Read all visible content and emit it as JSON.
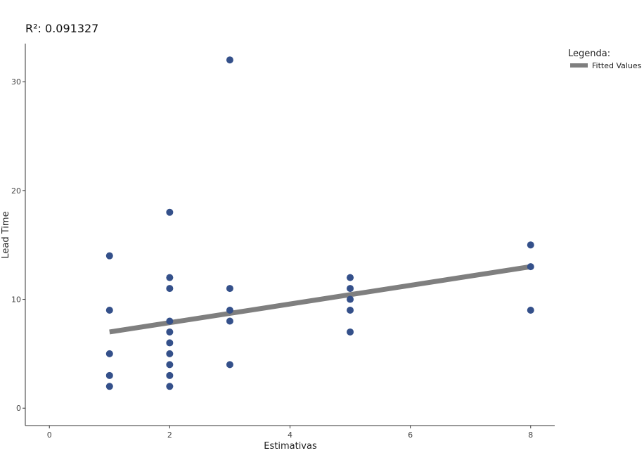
{
  "chart_data": {
    "type": "scatter",
    "title": "R²: 0.091327",
    "xlabel": "Estimativas",
    "ylabel": "Lead Time",
    "xlim": [
      -0.4,
      8.4
    ],
    "ylim": [
      -1.6,
      33.5
    ],
    "x_ticks": [
      0,
      2,
      4,
      6,
      8
    ],
    "y_ticks": [
      0,
      10,
      20,
      30
    ],
    "grid": false,
    "legend": {
      "title": "Legenda:",
      "position": "top-right",
      "entries": [
        {
          "label": "Fitted Values",
          "color": "#7f7f7f"
        }
      ]
    },
    "points": {
      "color": "#34508a",
      "x": [
        1,
        1,
        1,
        1,
        1,
        2,
        2,
        2,
        2,
        2,
        2,
        2,
        2,
        2,
        2,
        3,
        3,
        3,
        3,
        3,
        5,
        5,
        5,
        5,
        5,
        8,
        8,
        8
      ],
      "y": [
        14,
        9,
        5,
        3,
        2,
        18,
        12,
        11,
        8,
        7,
        6,
        5,
        4,
        3,
        2,
        32,
        11,
        9,
        8,
        4,
        12,
        11,
        10,
        9,
        7,
        15,
        13,
        9
      ]
    },
    "fitted_line": {
      "name": "Fitted Values",
      "color": "#7f7f7f",
      "x": [
        1,
        8
      ],
      "y": [
        7.0,
        13.0
      ]
    }
  }
}
